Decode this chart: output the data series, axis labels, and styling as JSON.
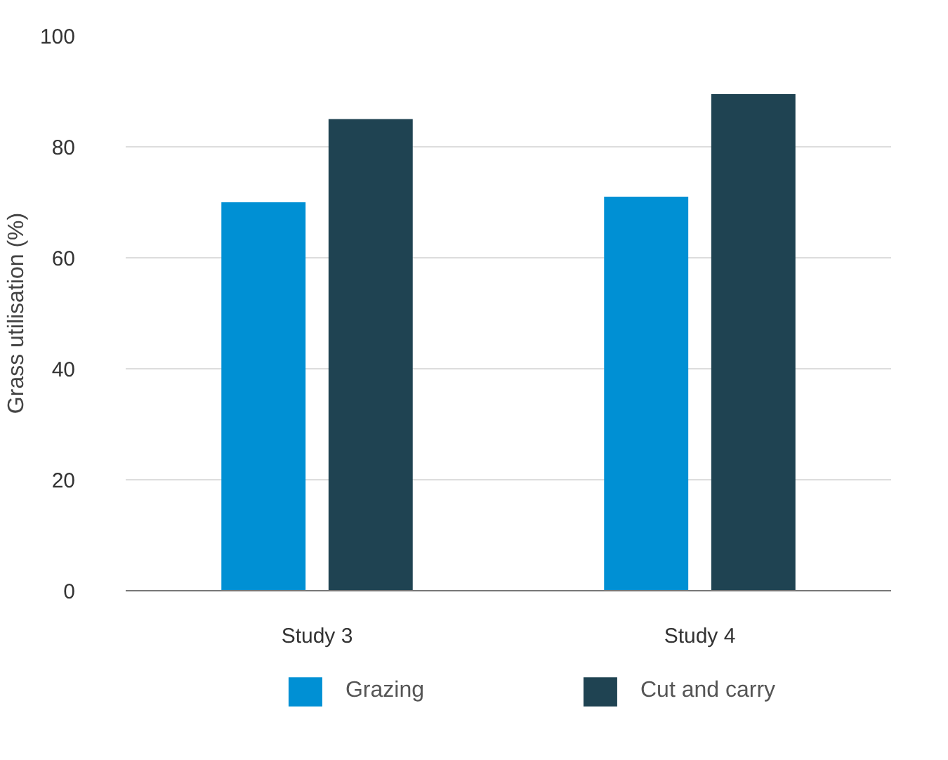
{
  "chart_data": {
    "type": "bar",
    "ylabel": "Grass utilisation (%)",
    "categories": [
      "Study 3",
      "Study 4"
    ],
    "series": [
      {
        "name": "Grazing",
        "color": "#0090d4",
        "values": [
          70,
          71
        ]
      },
      {
        "name": "Cut and carry",
        "color": "#1f4352",
        "values": [
          85,
          89.5
        ]
      }
    ],
    "ylim": [
      0,
      100
    ],
    "yticks": [
      0,
      20,
      40,
      60,
      80,
      100
    ],
    "grid": "y",
    "legend": "bottom"
  }
}
